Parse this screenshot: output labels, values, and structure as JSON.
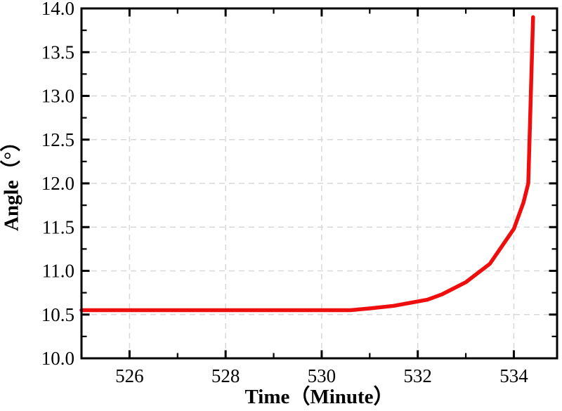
{
  "chart_data": {
    "type": "line",
    "title": "",
    "xlabel": "Time（Minute）",
    "ylabel": "Angle（°）",
    "xlim": [
      525,
      534.9
    ],
    "ylim": [
      10.0,
      14.0
    ],
    "x_tick_values": [
      526,
      528,
      530,
      532,
      534
    ],
    "x_tick_labels": [
      "526",
      "528",
      "530",
      "532",
      "534"
    ],
    "x_minor_ticks": [
      527,
      529,
      531,
      533
    ],
    "y_tick_values": [
      10.0,
      10.5,
      11.0,
      11.5,
      12.0,
      12.5,
      13.0,
      13.5,
      14.0
    ],
    "y_tick_labels": [
      "10.0",
      "10.5",
      "11.0",
      "11.5",
      "12.0",
      "12.5",
      "13.0",
      "13.5",
      "14.0"
    ],
    "y_minor_ticks": [
      10.25,
      10.75,
      11.25,
      11.75,
      12.25,
      12.75,
      13.25,
      13.75
    ],
    "grid": {
      "show": true,
      "style": "dashed",
      "on": "major-ticks",
      "color": "#d8d8d8"
    },
    "legend": null,
    "series": [
      {
        "name": "Angle",
        "color": "#ee0e0e",
        "line_width": 5.5,
        "points": [
          [
            525.0,
            10.55
          ],
          [
            525.5,
            10.55
          ],
          [
            526.0,
            10.55
          ],
          [
            526.5,
            10.55
          ],
          [
            527.0,
            10.55
          ],
          [
            527.5,
            10.55
          ],
          [
            528.0,
            10.55
          ],
          [
            528.5,
            10.55
          ],
          [
            529.0,
            10.55
          ],
          [
            529.5,
            10.55
          ],
          [
            530.0,
            10.55
          ],
          [
            530.6,
            10.55
          ],
          [
            531.0,
            10.57
          ],
          [
            531.5,
            10.6
          ],
          [
            532.0,
            10.65
          ],
          [
            532.2,
            10.67
          ],
          [
            532.5,
            10.73
          ],
          [
            533.0,
            10.87
          ],
          [
            533.5,
            11.08
          ],
          [
            534.0,
            11.48
          ],
          [
            534.2,
            11.78
          ],
          [
            534.3,
            12.0
          ],
          [
            534.4,
            13.9
          ]
        ]
      }
    ]
  },
  "style": {
    "background": "#ffffff",
    "axis_color": "#000000",
    "tick_color": "#000000",
    "text_color": "#000000"
  }
}
